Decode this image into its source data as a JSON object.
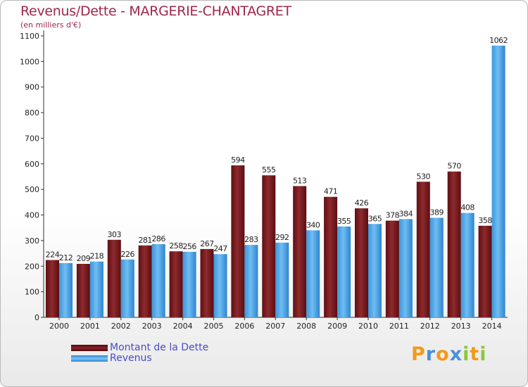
{
  "title": "Revenus/Dette - MARGERIE-CHANTAGRET",
  "subtitle": "(en milliers d'€)",
  "colors": {
    "title": "#a0264a",
    "dette": "#7a1a1e",
    "revenus": "#4aa3e6",
    "legend_text": "#4a4acc"
  },
  "legend": [
    {
      "label": "Montant de la Dette",
      "color": "#7a1a1e"
    },
    {
      "label": "Revenus",
      "color": "#4aa3e6"
    }
  ],
  "logo": {
    "letters": [
      "P",
      "r",
      "o",
      "x",
      "i",
      "t",
      "i"
    ],
    "colors": [
      "#f29a1a",
      "#4a90d9",
      "#f29a1a",
      "#4a90d9",
      "#8cc63f",
      "#f29a1a",
      "#8cc63f"
    ]
  },
  "chart_data": {
    "type": "bar",
    "categories": [
      "2000",
      "2001",
      "2002",
      "2003",
      "2004",
      "2005",
      "2006",
      "2007",
      "2008",
      "2009",
      "2010",
      "2011",
      "2012",
      "2013",
      "2014"
    ],
    "series": [
      {
        "name": "Montant de la Dette",
        "values": [
          224,
          209,
          303,
          281,
          258,
          267,
          594,
          555,
          513,
          471,
          426,
          378,
          530,
          570,
          358
        ]
      },
      {
        "name": "Revenus",
        "values": [
          212,
          218,
          226,
          286,
          256,
          247,
          283,
          292,
          340,
          355,
          365,
          384,
          389,
          408,
          1062
        ]
      }
    ],
    "ylim": [
      0,
      1100
    ],
    "yticks": [
      0,
      100,
      200,
      300,
      400,
      500,
      600,
      700,
      800,
      900,
      1000,
      1100
    ],
    "grid": false,
    "legend_position": "bottom-left"
  }
}
